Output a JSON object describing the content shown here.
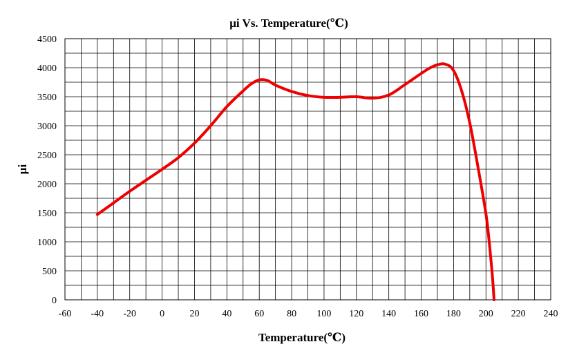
{
  "chart_data": {
    "type": "line",
    "title": "μi Vs. Temperature(℃)",
    "xlabel": "Temperature(℃)",
    "ylabel": "μi",
    "xlim": [
      -60,
      240
    ],
    "ylim": [
      0,
      4500
    ],
    "x_ticks": [
      -60,
      -40,
      -20,
      0,
      20,
      40,
      60,
      80,
      100,
      120,
      140,
      160,
      180,
      200,
      220,
      240
    ],
    "y_ticks": [
      0,
      500,
      1000,
      1500,
      2000,
      2500,
      3000,
      3500,
      4000,
      4500
    ],
    "grid": true,
    "legend": "none",
    "series": [
      {
        "color": "#ee0000",
        "x": [
          -40,
          -30,
          -20,
          -10,
          0,
          10,
          20,
          30,
          40,
          50,
          55,
          60,
          65,
          70,
          80,
          90,
          100,
          110,
          120,
          130,
          140,
          150,
          160,
          165,
          170,
          175,
          180,
          185,
          190,
          195,
          200,
          202,
          204,
          205
        ],
        "y": [
          1470,
          1670,
          1870,
          2060,
          2250,
          2450,
          2700,
          3000,
          3330,
          3600,
          3720,
          3790,
          3780,
          3700,
          3590,
          3520,
          3490,
          3490,
          3500,
          3475,
          3530,
          3710,
          3900,
          3990,
          4050,
          4060,
          3950,
          3600,
          3050,
          2300,
          1480,
          1000,
          400,
          0
        ]
      }
    ]
  }
}
